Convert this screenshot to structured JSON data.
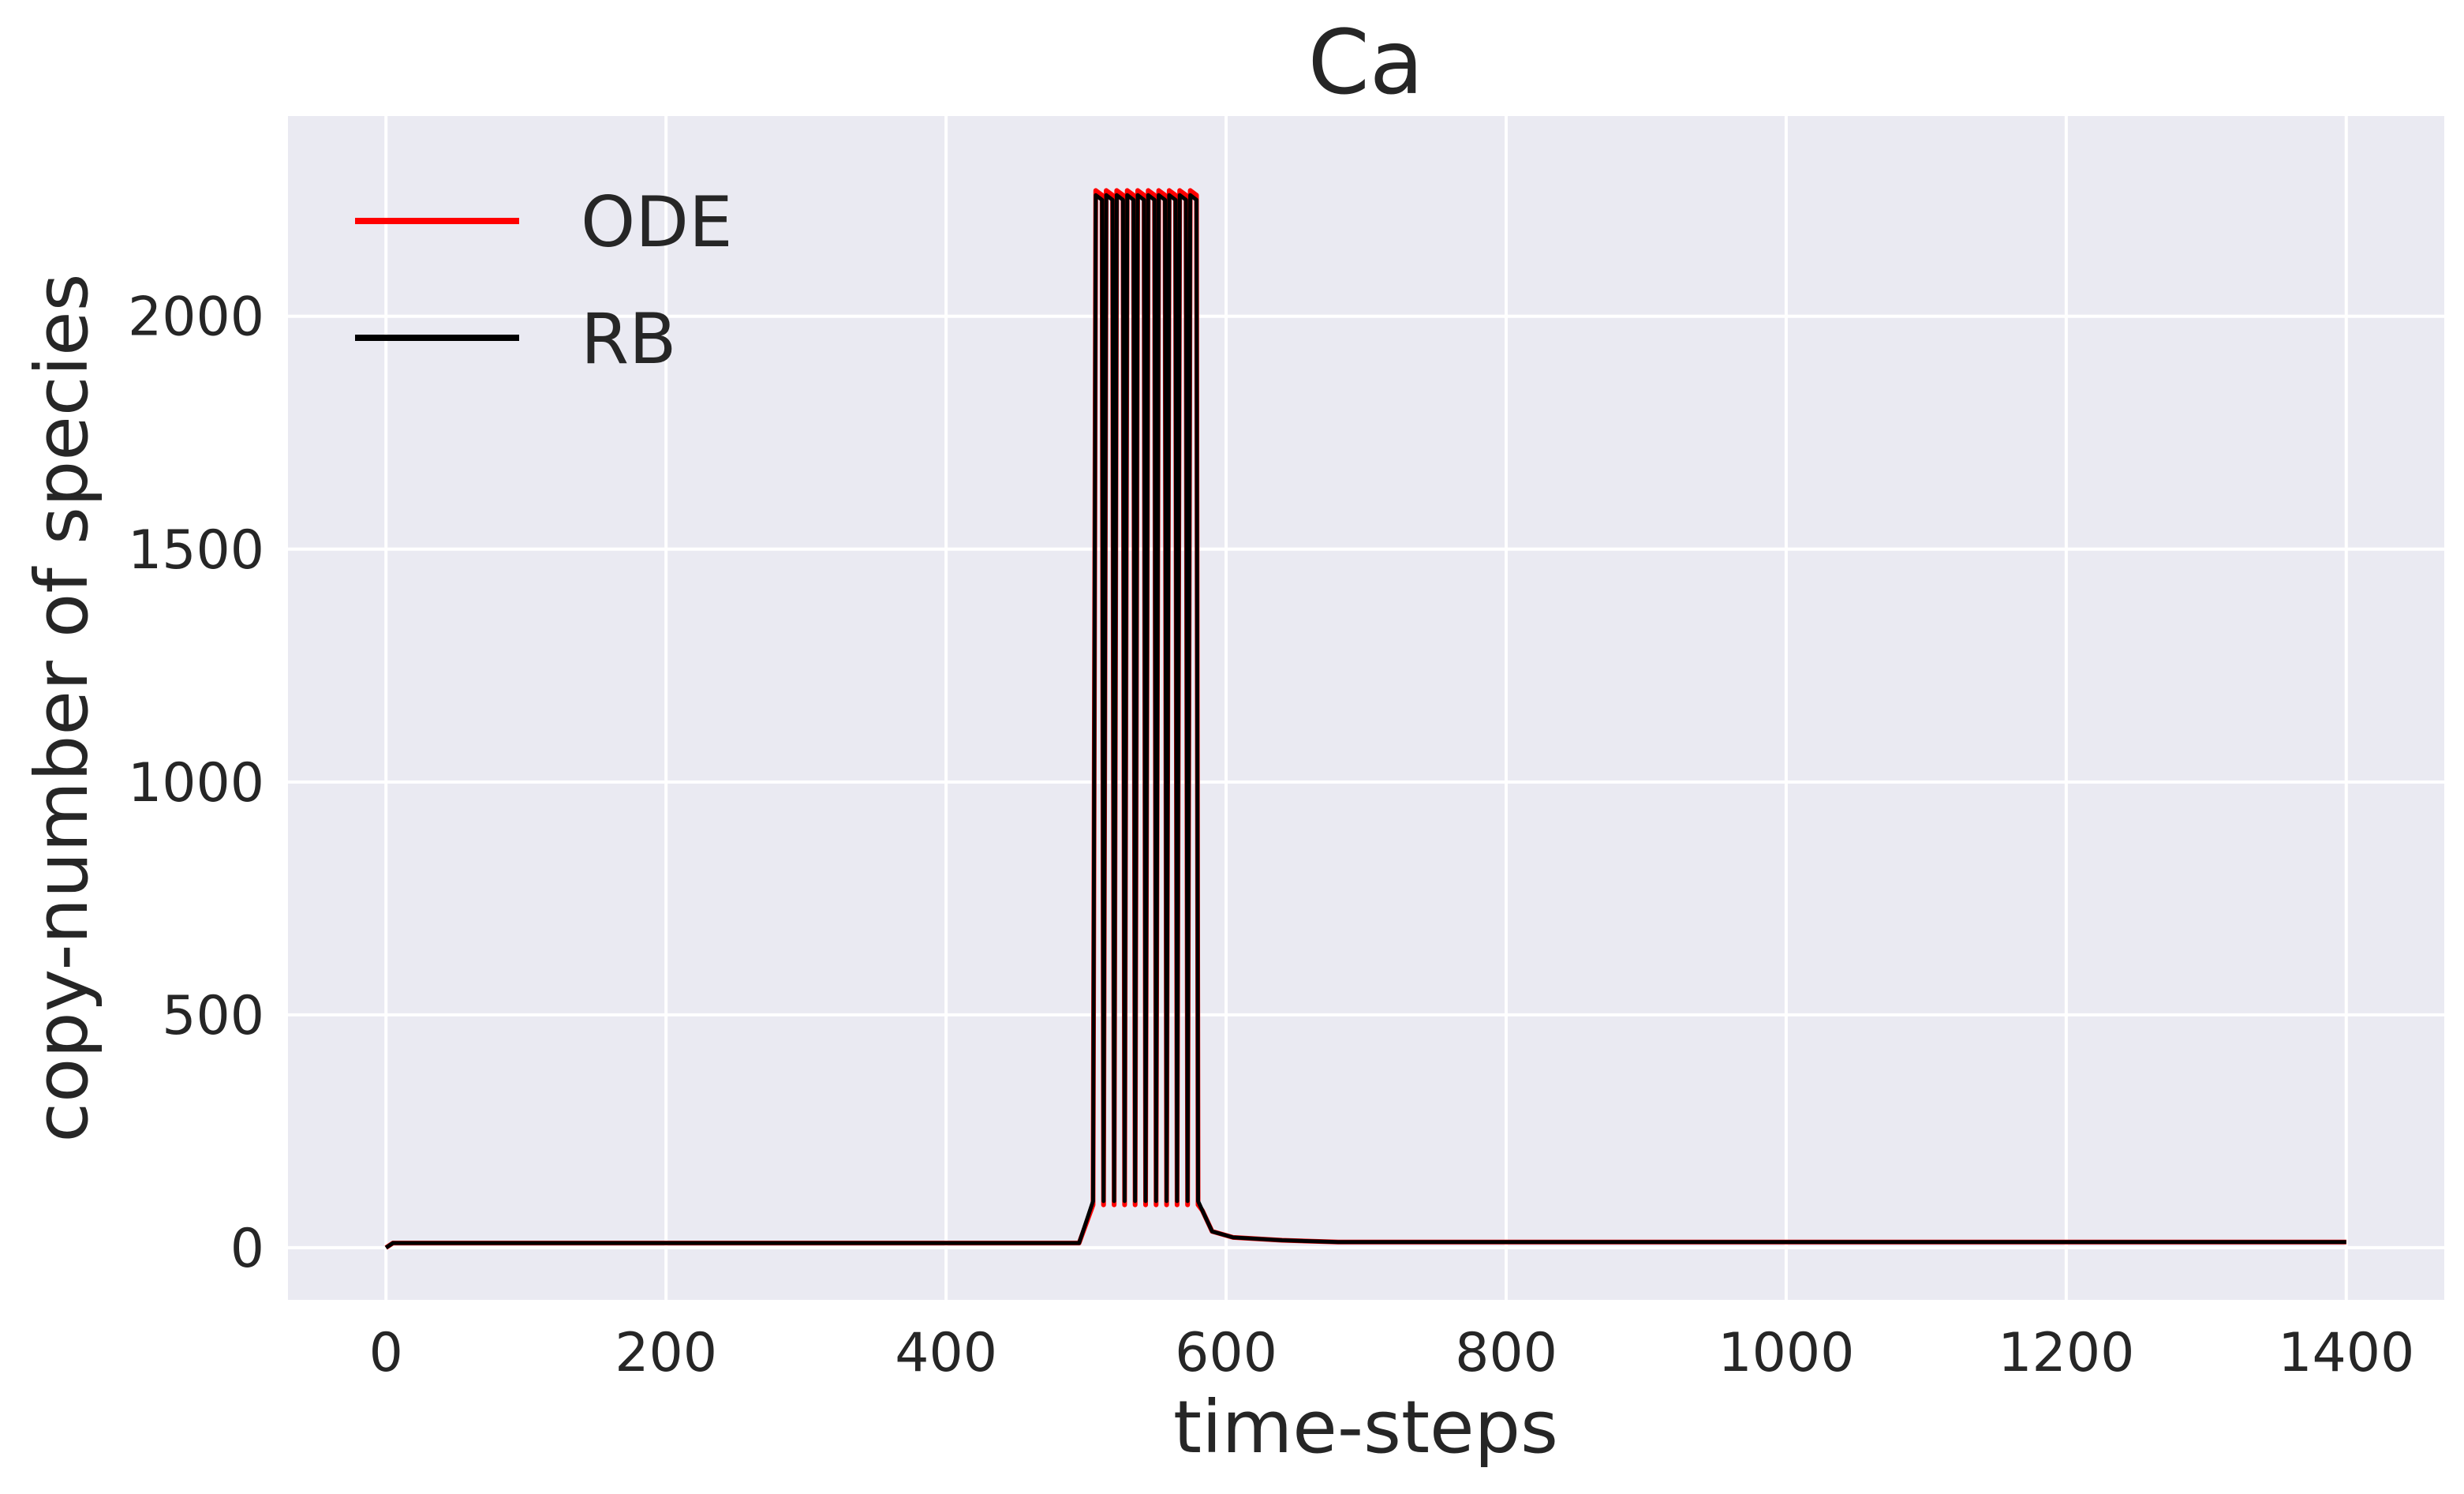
{
  "chart_data": {
    "type": "line",
    "title": "Ca",
    "xlabel": "time-steps",
    "ylabel": "copy-number of species",
    "xlim": [
      -70,
      1470
    ],
    "ylim": [
      -112,
      2430
    ],
    "xticks": [
      0,
      200,
      400,
      600,
      800,
      1000,
      1200,
      1400
    ],
    "yticks": [
      0,
      500,
      1000,
      1500,
      2000
    ],
    "xtick_labels": [
      "0",
      "200",
      "400",
      "600",
      "800",
      "1000",
      "1200",
      "1400"
    ],
    "ytick_labels": [
      "0",
      "500",
      "1000",
      "1500",
      "2000"
    ],
    "grid": true,
    "legend_position": "top-left",
    "background": "#eaeaf2",
    "grid_color": "#ffffff",
    "series": [
      {
        "name": "ODE",
        "color": "#ff0000",
        "baseline": 10,
        "spike_start": 505,
        "spike_end": 580,
        "spike_count": 10,
        "spike_peak": 2270,
        "spike_trough": 92,
        "decay_to": 12,
        "x_end": 1400
      },
      {
        "name": "RB",
        "color": "#000000",
        "baseline": 10,
        "spike_start": 505,
        "spike_end": 580,
        "spike_count": 10,
        "spike_peak": 2260,
        "spike_trough": 100,
        "decay_to": 12,
        "x_end": 1400
      }
    ]
  }
}
